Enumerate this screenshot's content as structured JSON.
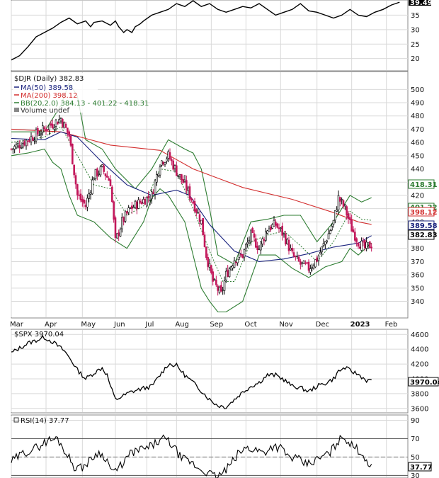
{
  "colors": {
    "ma50": "#1a237e",
    "ma200": "#d32f2f",
    "bb": "#2e7d32",
    "candle_up": "#000000",
    "candle_down": "#c2185b",
    "price_line": "#000000",
    "grid": "#d9d9d9"
  },
  "chart_data": [
    {
      "panel": "top-ratio",
      "type": "line",
      "title": "",
      "last_label": "39.49",
      "ylim": [
        16,
        40
      ],
      "yticks": [
        20,
        25,
        30,
        35
      ],
      "points": [
        [
          0,
          19.5
        ],
        [
          5,
          21
        ],
        [
          10,
          24
        ],
        [
          15,
          27.5
        ],
        [
          20,
          29
        ],
        [
          25,
          30.5
        ],
        [
          30,
          32.5
        ],
        [
          35,
          34
        ],
        [
          40,
          32
        ],
        [
          45,
          33
        ],
        [
          48,
          31
        ],
        [
          50,
          32.5
        ],
        [
          55,
          33
        ],
        [
          60,
          31.5
        ],
        [
          63,
          33
        ],
        [
          65,
          31
        ],
        [
          68,
          29
        ],
        [
          70,
          30
        ],
        [
          73,
          29
        ],
        [
          75,
          31
        ],
        [
          78,
          32
        ],
        [
          80,
          33
        ],
        [
          85,
          35
        ],
        [
          90,
          36
        ],
        [
          95,
          37
        ],
        [
          100,
          39
        ],
        [
          105,
          38
        ],
        [
          110,
          40
        ],
        [
          115,
          38
        ],
        [
          120,
          39
        ],
        [
          125,
          37
        ],
        [
          130,
          36
        ],
        [
          135,
          37
        ],
        [
          140,
          38
        ],
        [
          145,
          37.5
        ],
        [
          150,
          39
        ],
        [
          155,
          37
        ],
        [
          160,
          35
        ],
        [
          165,
          36
        ],
        [
          170,
          37
        ],
        [
          175,
          39
        ],
        [
          180,
          36.5
        ],
        [
          185,
          36
        ],
        [
          190,
          35
        ],
        [
          195,
          34
        ],
        [
          200,
          35
        ],
        [
          205,
          37
        ],
        [
          210,
          35
        ],
        [
          215,
          34.5
        ],
        [
          220,
          36
        ],
        [
          225,
          37
        ],
        [
          230,
          38.5
        ],
        [
          235,
          39.49
        ]
      ]
    },
    {
      "panel": "price",
      "type": "candlestick",
      "title": "$DJR (Daily) 382.83",
      "legend": [
        "MA(50) 389.58",
        "MA(200) 398.12",
        "BB(20,2.0) 384.13 - 401.22 - 418.31",
        "Volume undef"
      ],
      "ylim": [
        328,
        513
      ],
      "yticks": [
        340,
        350,
        360,
        370,
        380,
        390,
        400,
        410,
        420,
        430,
        440,
        450,
        460,
        470,
        480,
        490,
        500
      ],
      "xticks": [
        "Mar",
        "Apr",
        "May",
        "Jun",
        "Jul",
        "Aug",
        "Sep",
        "Oct",
        "Nov",
        "Dec",
        "2023",
        "Feb"
      ],
      "tags": [
        "418.31",
        "401.22",
        "398.12",
        "389.58",
        "382.83"
      ],
      "closes_anchor": [
        [
          0,
          455
        ],
        [
          10,
          462
        ],
        [
          20,
          470
        ],
        [
          30,
          478
        ],
        [
          35,
          465
        ],
        [
          40,
          420
        ],
        [
          45,
          412
        ],
        [
          50,
          435
        ],
        [
          55,
          440
        ],
        [
          60,
          430
        ],
        [
          63,
          385
        ],
        [
          67,
          400
        ],
        [
          72,
          410
        ],
        [
          78,
          415
        ],
        [
          85,
          420
        ],
        [
          90,
          445
        ],
        [
          95,
          450
        ],
        [
          100,
          438
        ],
        [
          105,
          428
        ],
        [
          110,
          415
        ],
        [
          115,
          400
        ],
        [
          118,
          375
        ],
        [
          122,
          355
        ],
        [
          127,
          345
        ],
        [
          130,
          360
        ],
        [
          135,
          372
        ],
        [
          140,
          375
        ],
        [
          145,
          390
        ],
        [
          150,
          380
        ],
        [
          155,
          395
        ],
        [
          160,
          398
        ],
        [
          165,
          390
        ],
        [
          170,
          375
        ],
        [
          175,
          368
        ],
        [
          180,
          365
        ],
        [
          185,
          372
        ],
        [
          190,
          385
        ],
        [
          195,
          400
        ],
        [
          198,
          418
        ],
        [
          202,
          410
        ],
        [
          206,
          395
        ],
        [
          210,
          385
        ],
        [
          214,
          380
        ],
        [
          218,
          383
        ]
      ],
      "ma50_anchor": [
        [
          0,
          463
        ],
        [
          20,
          462
        ],
        [
          30,
          468
        ],
        [
          40,
          464
        ],
        [
          55,
          445
        ],
        [
          70,
          428
        ],
        [
          85,
          420
        ],
        [
          100,
          424
        ],
        [
          108,
          420
        ],
        [
          120,
          398
        ],
        [
          135,
          378
        ],
        [
          150,
          370
        ],
        [
          165,
          372
        ],
        [
          180,
          376
        ],
        [
          195,
          381
        ],
        [
          210,
          384
        ],
        [
          218,
          389.58
        ]
      ],
      "ma200_anchor": [
        [
          0,
          470
        ],
        [
          30,
          468
        ],
        [
          60,
          458
        ],
        [
          90,
          454
        ],
        [
          110,
          440
        ],
        [
          140,
          426
        ],
        [
          170,
          417
        ],
        [
          195,
          407
        ],
        [
          210,
          400
        ],
        [
          218,
          398.12
        ]
      ],
      "bbmid_anchor": [
        [
          0,
          460
        ],
        [
          20,
          464
        ],
        [
          30,
          472
        ],
        [
          40,
          450
        ],
        [
          50,
          428
        ],
        [
          60,
          425
        ],
        [
          70,
          405
        ],
        [
          80,
          412
        ],
        [
          90,
          440
        ],
        [
          100,
          438
        ],
        [
          110,
          410
        ],
        [
          120,
          378
        ],
        [
          128,
          355
        ],
        [
          135,
          355
        ],
        [
          145,
          385
        ],
        [
          155,
          390
        ],
        [
          165,
          393
        ],
        [
          175,
          382
        ],
        [
          185,
          370
        ],
        [
          195,
          385
        ],
        [
          205,
          408
        ],
        [
          212,
          402
        ],
        [
          218,
          401.22
        ]
      ],
      "bbup_anchor": [
        [
          0,
          468
        ],
        [
          20,
          468
        ],
        [
          30,
          488
        ],
        [
          35,
          505
        ],
        [
          40,
          495
        ],
        [
          45,
          462
        ],
        [
          55,
          455
        ],
        [
          63,
          440
        ],
        [
          75,
          425
        ],
        [
          85,
          440
        ],
        [
          95,
          462
        ],
        [
          105,
          455
        ],
        [
          110,
          452
        ],
        [
          115,
          440
        ],
        [
          120,
          410
        ],
        [
          125,
          375
        ],
        [
          135,
          368
        ],
        [
          145,
          400
        ],
        [
          155,
          402
        ],
        [
          165,
          405
        ],
        [
          175,
          405
        ],
        [
          185,
          385
        ],
        [
          195,
          400
        ],
        [
          205,
          420
        ],
        [
          212,
          415
        ],
        [
          218,
          418.31
        ]
      ],
      "bblow_anchor": [
        [
          0,
          450
        ],
        [
          10,
          452
        ],
        [
          20,
          455
        ],
        [
          25,
          445
        ],
        [
          30,
          440
        ],
        [
          35,
          420
        ],
        [
          40,
          405
        ],
        [
          50,
          400
        ],
        [
          60,
          388
        ],
        [
          70,
          380
        ],
        [
          80,
          400
        ],
        [
          85,
          418
        ],
        [
          90,
          425
        ],
        [
          95,
          420
        ],
        [
          105,
          400
        ],
        [
          110,
          375
        ],
        [
          115,
          350
        ],
        [
          120,
          340
        ],
        [
          125,
          332
        ],
        [
          130,
          332
        ],
        [
          140,
          340
        ],
        [
          150,
          375
        ],
        [
          160,
          375
        ],
        [
          170,
          365
        ],
        [
          180,
          358
        ],
        [
          190,
          366
        ],
        [
          200,
          370
        ],
        [
          205,
          380
        ],
        [
          210,
          375
        ],
        [
          218,
          384.13
        ]
      ]
    },
    {
      "panel": "spx",
      "type": "line",
      "title": "$SPX 3970.04",
      "last_label": "3970.04",
      "ylim": [
        3550,
        4660
      ],
      "yticks": [
        3600,
        3800,
        4000,
        4200,
        4400,
        4600
      ],
      "points": [
        [
          0,
          4350
        ],
        [
          10,
          4480
        ],
        [
          20,
          4560
        ],
        [
          25,
          4500
        ],
        [
          32,
          4380
        ],
        [
          36,
          4260
        ],
        [
          40,
          4120
        ],
        [
          45,
          4000
        ],
        [
          50,
          4080
        ],
        [
          55,
          4150
        ],
        [
          58,
          4050
        ],
        [
          60,
          3900
        ],
        [
          63,
          3720
        ],
        [
          67,
          3760
        ],
        [
          72,
          3820
        ],
        [
          78,
          3860
        ],
        [
          85,
          3900
        ],
        [
          90,
          4050
        ],
        [
          95,
          4200
        ],
        [
          100,
          4180
        ],
        [
          105,
          4050
        ],
        [
          110,
          3950
        ],
        [
          115,
          3840
        ],
        [
          120,
          3720
        ],
        [
          125,
          3640
        ],
        [
          130,
          3620
        ],
        [
          135,
          3720
        ],
        [
          140,
          3820
        ],
        [
          145,
          3900
        ],
        [
          150,
          3950
        ],
        [
          155,
          4050
        ],
        [
          160,
          4050
        ],
        [
          165,
          3990
        ],
        [
          170,
          3900
        ],
        [
          175,
          3880
        ],
        [
          180,
          3830
        ],
        [
          185,
          3900
        ],
        [
          190,
          3940
        ],
        [
          195,
          4000
        ],
        [
          198,
          4100
        ],
        [
          202,
          4150
        ],
        [
          206,
          4100
        ],
        [
          210,
          4060
        ],
        [
          215,
          3980
        ],
        [
          218,
          3970.04
        ]
      ]
    },
    {
      "panel": "rsi",
      "type": "line",
      "title": "RSI(14) 37.77",
      "last_label": "37.77",
      "ylim": [
        28,
        95
      ],
      "yticks": [
        30,
        50,
        70,
        90
      ],
      "points": [
        [
          0,
          45
        ],
        [
          8,
          55
        ],
        [
          15,
          60
        ],
        [
          22,
          68
        ],
        [
          28,
          70
        ],
        [
          33,
          55
        ],
        [
          38,
          40
        ],
        [
          42,
          38
        ],
        [
          47,
          45
        ],
        [
          52,
          55
        ],
        [
          57,
          50
        ],
        [
          60,
          38
        ],
        [
          63,
          33
        ],
        [
          68,
          45
        ],
        [
          73,
          55
        ],
        [
          78,
          58
        ],
        [
          83,
          60
        ],
        [
          88,
          66
        ],
        [
          93,
          70
        ],
        [
          98,
          62
        ],
        [
          103,
          48
        ],
        [
          108,
          45
        ],
        [
          113,
          38
        ],
        [
          118,
          34
        ],
        [
          123,
          29
        ],
        [
          127,
          31
        ],
        [
          132,
          40
        ],
        [
          138,
          55
        ],
        [
          143,
          60
        ],
        [
          148,
          58
        ],
        [
          153,
          55
        ],
        [
          158,
          62
        ],
        [
          163,
          60
        ],
        [
          168,
          50
        ],
        [
          173,
          48
        ],
        [
          178,
          42
        ],
        [
          183,
          45
        ],
        [
          188,
          50
        ],
        [
          193,
          55
        ],
        [
          198,
          68
        ],
        [
          202,
          72
        ],
        [
          206,
          62
        ],
        [
          210,
          58
        ],
        [
          214,
          50
        ],
        [
          218,
          37.77
        ]
      ]
    }
  ]
}
